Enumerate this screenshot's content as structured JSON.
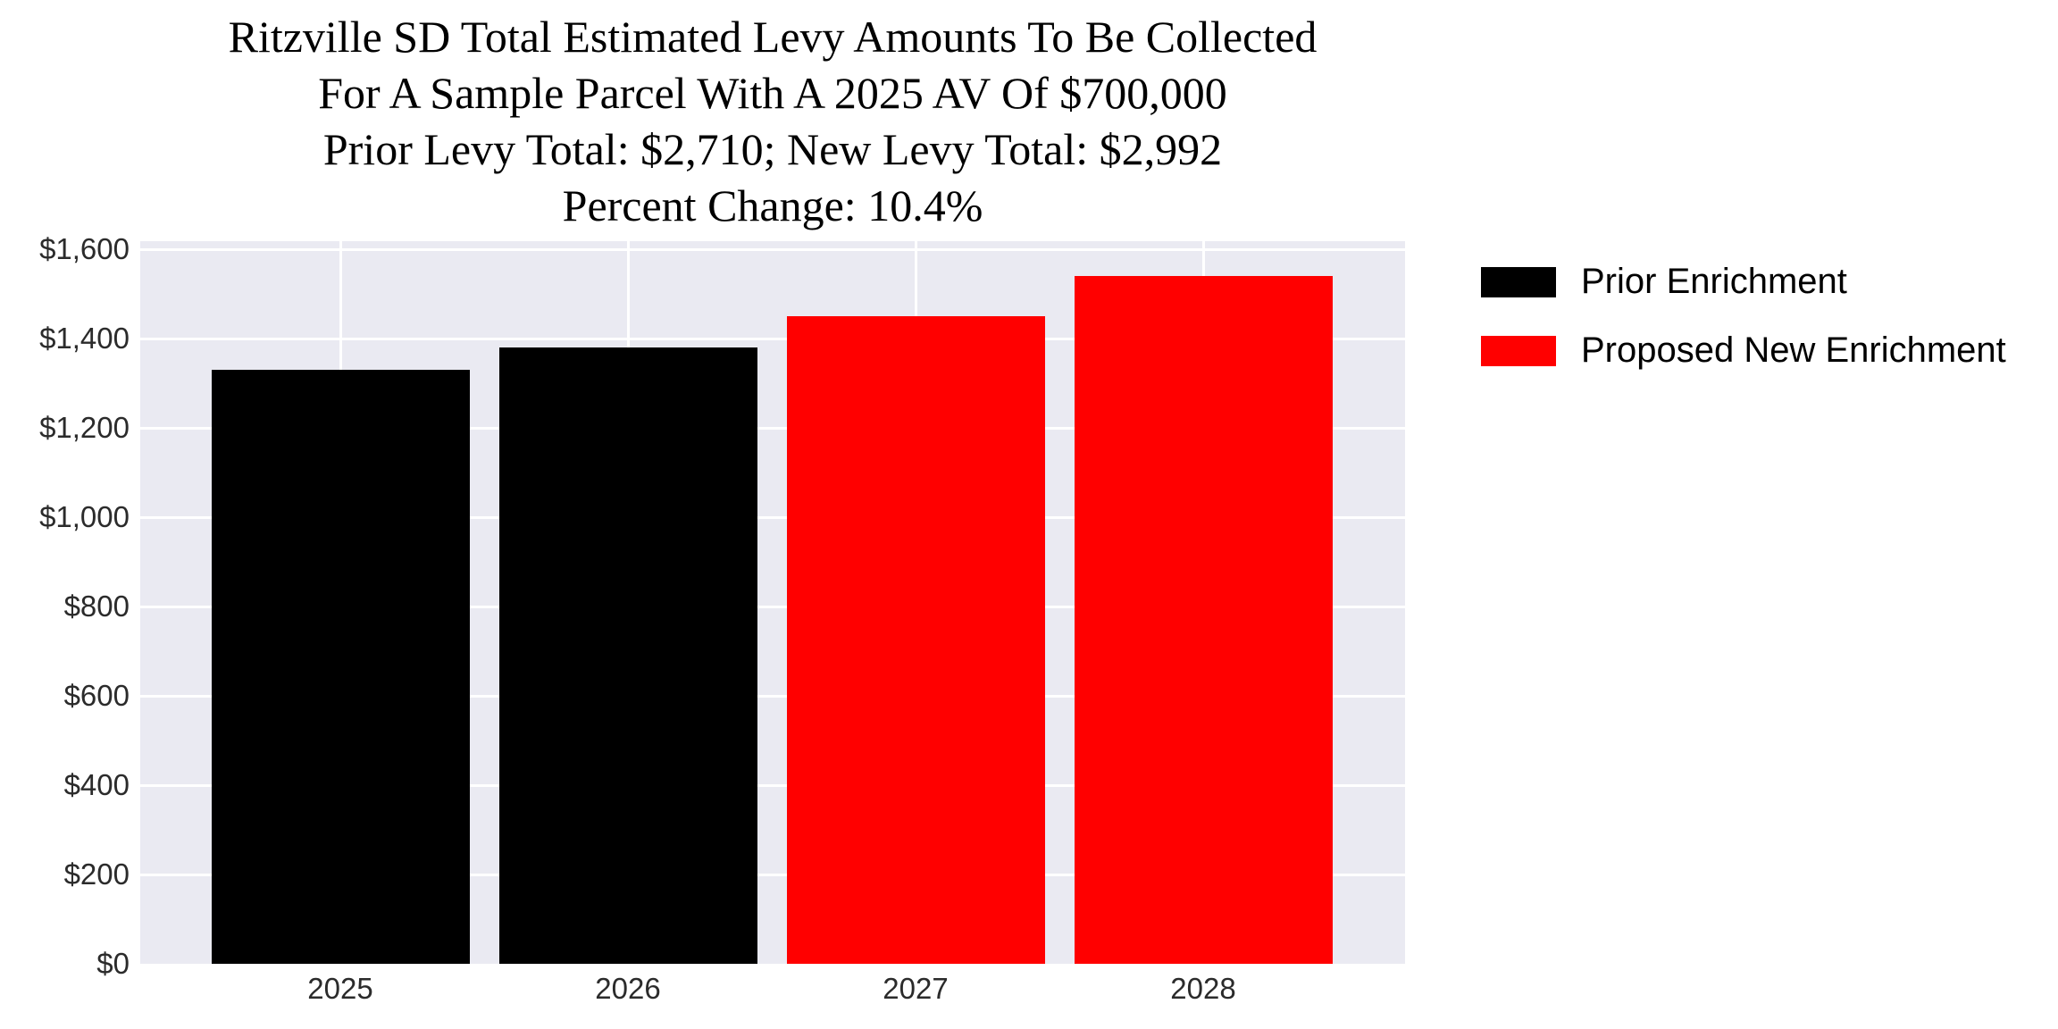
{
  "chart_data": {
    "type": "bar",
    "title_lines": [
      "Ritzville SD Total Estimated Levy Amounts To Be Collected",
      "For A Sample Parcel With A 2025 AV Of $700,000",
      "Prior Levy Total:  $2,710; New Levy Total: $2,992",
      "Percent Change: 10.4%"
    ],
    "prior_levy_total": "$2,710",
    "new_levy_total": "$2,992",
    "percent_change": "10.4%",
    "categories": [
      "2025",
      "2026",
      "2027",
      "2028"
    ],
    "bars": [
      {
        "category": "2025",
        "value": 1330,
        "series": 0,
        "display": "$1,330"
      },
      {
        "category": "2026",
        "value": 1380,
        "series": 0,
        "display": "$1,380"
      },
      {
        "category": "2027",
        "value": 1451,
        "series": 1,
        "display": "$1,451"
      },
      {
        "category": "2028",
        "value": 1541,
        "series": 1,
        "display": "$1,541"
      }
    ],
    "series": [
      {
        "name": "Prior Enrichment",
        "color": "#000000"
      },
      {
        "name": "Proposed New Enrichment",
        "color": "#ff0000"
      }
    ],
    "yticks": [
      {
        "label": "$0",
        "value": 0
      },
      {
        "label": "$200",
        "value": 200
      },
      {
        "label": "$400",
        "value": 400
      },
      {
        "label": "$600",
        "value": 600
      },
      {
        "label": "$800",
        "value": 800
      },
      {
        "label": "$1,000",
        "value": 1000
      },
      {
        "label": "$1,200",
        "value": 1200
      },
      {
        "label": "$1,400",
        "value": 1400
      },
      {
        "label": "$1,600",
        "value": 1600
      }
    ],
    "xlabel": "",
    "ylabel": "",
    "ylim": [
      0,
      1618
    ],
    "grid": true,
    "plot_background": "#eaeaf2",
    "grid_color": "#ffffff",
    "tick_color": "#2b2b2b",
    "legend_position": "outside-upper-right"
  }
}
